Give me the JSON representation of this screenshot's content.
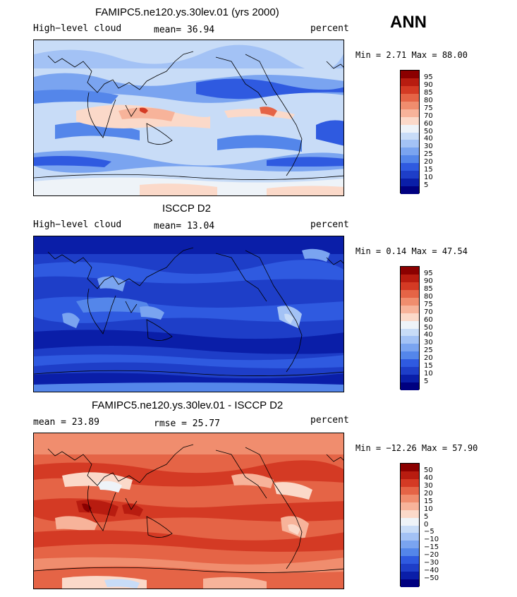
{
  "header": {
    "season": "ANN"
  },
  "panels": [
    {
      "title": "FAMIPC5.ne120.ys.30lev.01 (yrs 2000)",
      "left_label": "High−level cloud",
      "mean_text": "mean=   36.94",
      "unit": "percent",
      "minmax": "Min =   2.71 Max =  88.00",
      "colorbar_labels": [
        "95",
        "90",
        "85",
        "80",
        "75",
        "70",
        "60",
        "50",
        "40",
        "30",
        "25",
        "20",
        "15",
        "10",
        "5"
      ],
      "colors": [
        "#000080",
        "#0a1ea8",
        "#1e3ec8",
        "#2f5ae0",
        "#5486ea",
        "#7aa4f0",
        "#a3c2f5",
        "#c8dcf7",
        "#eef3f8",
        "#fbd9c9",
        "#f7b39a",
        "#f08d6e",
        "#e56446",
        "#d43a24",
        "#b81c10",
        "#8b0000"
      ]
    },
    {
      "title": "ISCCP D2",
      "left_label": "High−level cloud",
      "mean_text": "mean=   13.04",
      "unit": "percent",
      "minmax": "Min =   0.14 Max =  47.54",
      "colorbar_labels": [
        "95",
        "90",
        "85",
        "80",
        "75",
        "70",
        "60",
        "50",
        "40",
        "30",
        "25",
        "20",
        "15",
        "10",
        "5"
      ],
      "colors": [
        "#000080",
        "#0a1ea8",
        "#1e3ec8",
        "#2f5ae0",
        "#5486ea",
        "#7aa4f0",
        "#a3c2f5",
        "#c8dcf7",
        "#eef3f8",
        "#fbd9c9",
        "#f7b39a",
        "#f08d6e",
        "#e56446",
        "#d43a24",
        "#b81c10",
        "#8b0000"
      ]
    },
    {
      "title": "FAMIPC5.ne120.ys.30lev.01 - ISCCP D2",
      "left_label": "mean =   23.89",
      "mean_text": "rmse =   25.77",
      "unit": "percent",
      "minmax": "Min = −12.26 Max =  57.90",
      "colorbar_labels": [
        "50",
        "40",
        "30",
        "20",
        "15",
        "10",
        "5",
        "0",
        "−5",
        "−10",
        "−15",
        "−20",
        "−30",
        "−40",
        "−50"
      ],
      "colors": [
        "#000080",
        "#0a1ea8",
        "#1e3ec8",
        "#2f5ae0",
        "#5486ea",
        "#7aa4f0",
        "#a3c2f5",
        "#c8dcf7",
        "#eef3f8",
        "#fbd9c9",
        "#f7b39a",
        "#f08d6e",
        "#e56446",
        "#d43a24",
        "#b81c10",
        "#8b0000"
      ]
    }
  ]
}
